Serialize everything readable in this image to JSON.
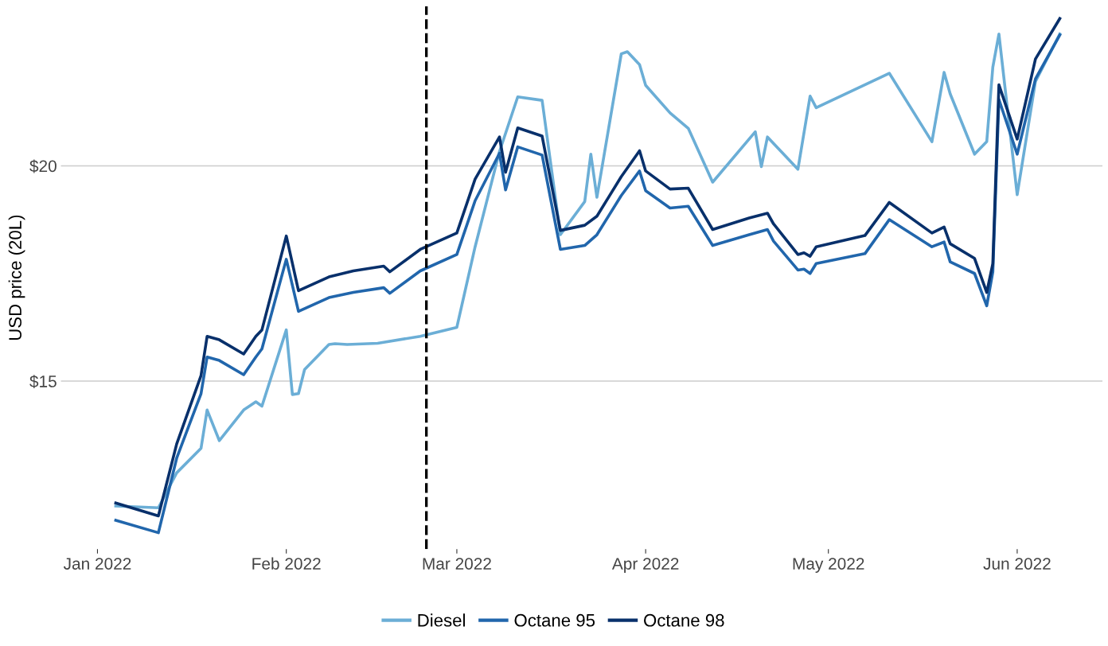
{
  "chart_data": {
    "type": "line",
    "ylabel": "USD price (20L)",
    "xlim": [
      "2021-12-26",
      "2022-06-15"
    ],
    "xticks": [
      {
        "value": "2022-01-01",
        "label": "Jan 2022"
      },
      {
        "value": "2022-02-01",
        "label": "Feb 2022"
      },
      {
        "value": "2022-03-01",
        "label": "Mar 2022"
      },
      {
        "value": "2022-04-01",
        "label": "Apr 2022"
      },
      {
        "value": "2022-05-01",
        "label": "May 2022"
      },
      {
        "value": "2022-06-01",
        "label": "Jun 2022"
      }
    ],
    "ylim": [
      11.1,
      23.7
    ],
    "yticks": [
      {
        "value": 15,
        "label": "$15"
      },
      {
        "value": 20,
        "label": "$20"
      }
    ],
    "grid": "y",
    "legend": "bottom",
    "marker": "none",
    "line_style": "solid",
    "ref_lines": [
      {
        "axis": "x",
        "value": "2022-02-24",
        "label": null,
        "color": "#000000",
        "line_style": "dashed"
      }
    ],
    "series": [
      {
        "name": "Diesel",
        "color": "#6baed6",
        "x": [
          "2022-01-04",
          "2022-01-11",
          "2022-01-14",
          "2022-01-18",
          "2022-01-19",
          "2022-01-21",
          "2022-01-25",
          "2022-01-27",
          "2022-01-28",
          "2022-02-01",
          "2022-02-02",
          "2022-02-03",
          "2022-02-04",
          "2022-02-08",
          "2022-02-09",
          "2022-02-11",
          "2022-02-16",
          "2022-02-23",
          "2022-03-01",
          "2022-03-04",
          "2022-03-08",
          "2022-03-11",
          "2022-03-15",
          "2022-03-18",
          "2022-03-22",
          "2022-03-23",
          "2022-03-24",
          "2022-03-28",
          "2022-03-29",
          "2022-03-31",
          "2022-04-01",
          "2022-04-05",
          "2022-04-08",
          "2022-04-12",
          "2022-04-19",
          "2022-04-20",
          "2022-04-21",
          "2022-04-26",
          "2022-04-28",
          "2022-04-29",
          "2022-05-11",
          "2022-05-18",
          "2022-05-20",
          "2022-05-21",
          "2022-05-25",
          "2022-05-27",
          "2022-05-28",
          "2022-05-29",
          "2022-06-01",
          "2022-06-04",
          "2022-06-08"
        ],
        "values": [
          12.1,
          12.06,
          12.87,
          13.44,
          14.33,
          13.62,
          14.33,
          14.52,
          14.42,
          16.19,
          14.69,
          14.71,
          15.27,
          15.85,
          15.87,
          15.85,
          15.88,
          16.04,
          16.25,
          18.12,
          20.33,
          21.6,
          21.52,
          18.4,
          19.17,
          20.27,
          19.27,
          22.6,
          22.65,
          22.35,
          21.87,
          21.23,
          20.87,
          19.62,
          20.79,
          19.98,
          20.67,
          19.92,
          21.62,
          21.35,
          22.15,
          20.56,
          22.17,
          21.67,
          20.27,
          20.56,
          22.29,
          23.06,
          19.33,
          21.96,
          23.06
        ]
      },
      {
        "name": "Octane 95",
        "color": "#2166ac",
        "x": [
          "2022-01-04",
          "2022-01-11",
          "2022-01-14",
          "2022-01-18",
          "2022-01-19",
          "2022-01-21",
          "2022-01-25",
          "2022-01-27",
          "2022-01-28",
          "2022-02-01",
          "2022-02-03",
          "2022-02-08",
          "2022-02-12",
          "2022-02-17",
          "2022-02-18",
          "2022-02-23",
          "2022-03-01",
          "2022-03-04",
          "2022-03-08",
          "2022-03-09",
          "2022-03-11",
          "2022-03-15",
          "2022-03-18",
          "2022-03-22",
          "2022-03-24",
          "2022-03-28",
          "2022-03-31",
          "2022-04-01",
          "2022-04-05",
          "2022-04-08",
          "2022-04-12",
          "2022-04-18",
          "2022-04-21",
          "2022-04-22",
          "2022-04-26",
          "2022-04-27",
          "2022-04-28",
          "2022-04-29",
          "2022-05-07",
          "2022-05-11",
          "2022-05-18",
          "2022-05-20",
          "2022-05-21",
          "2022-05-25",
          "2022-05-27",
          "2022-05-28",
          "2022-05-29",
          "2022-06-01",
          "2022-06-04",
          "2022-06-08"
        ],
        "values": [
          11.77,
          11.48,
          13.21,
          14.71,
          15.56,
          15.48,
          15.15,
          15.56,
          15.75,
          17.83,
          16.62,
          16.94,
          17.06,
          17.17,
          17.04,
          17.56,
          17.94,
          19.19,
          20.29,
          19.44,
          20.44,
          20.25,
          18.06,
          18.15,
          18.4,
          19.31,
          19.88,
          19.42,
          19.02,
          19.06,
          18.15,
          18.4,
          18.52,
          18.25,
          17.58,
          17.6,
          17.5,
          17.73,
          17.96,
          18.75,
          18.12,
          18.23,
          17.77,
          17.5,
          16.75,
          17.54,
          21.54,
          20.27,
          22.02,
          23.04
        ]
      },
      {
        "name": "Octane 98",
        "color": "#08306b",
        "x": [
          "2022-01-04",
          "2022-01-11",
          "2022-01-14",
          "2022-01-18",
          "2022-01-19",
          "2022-01-21",
          "2022-01-25",
          "2022-01-27",
          "2022-01-28",
          "2022-02-01",
          "2022-02-03",
          "2022-02-08",
          "2022-02-12",
          "2022-02-17",
          "2022-02-18",
          "2022-02-23",
          "2022-03-01",
          "2022-03-04",
          "2022-03-08",
          "2022-03-09",
          "2022-03-11",
          "2022-03-15",
          "2022-03-18",
          "2022-03-22",
          "2022-03-24",
          "2022-03-28",
          "2022-03-31",
          "2022-04-01",
          "2022-04-05",
          "2022-04-08",
          "2022-04-12",
          "2022-04-18",
          "2022-04-21",
          "2022-04-22",
          "2022-04-26",
          "2022-04-27",
          "2022-04-28",
          "2022-04-29",
          "2022-05-07",
          "2022-05-11",
          "2022-05-18",
          "2022-05-20",
          "2022-05-21",
          "2022-05-25",
          "2022-05-27",
          "2022-05-28",
          "2022-05-29",
          "2022-06-01",
          "2022-06-04",
          "2022-06-08"
        ],
        "values": [
          12.17,
          11.87,
          13.54,
          15.13,
          16.04,
          15.96,
          15.63,
          16.04,
          16.19,
          18.37,
          17.1,
          17.42,
          17.56,
          17.67,
          17.54,
          18.06,
          18.44,
          19.69,
          20.67,
          19.85,
          20.88,
          20.69,
          18.5,
          18.62,
          18.83,
          19.75,
          20.35,
          19.88,
          19.46,
          19.48,
          18.52,
          18.79,
          18.9,
          18.65,
          17.94,
          17.98,
          17.9,
          18.12,
          18.38,
          19.15,
          18.44,
          18.58,
          18.19,
          17.85,
          17.06,
          17.73,
          21.88,
          20.62,
          22.48,
          23.42
        ]
      }
    ]
  }
}
